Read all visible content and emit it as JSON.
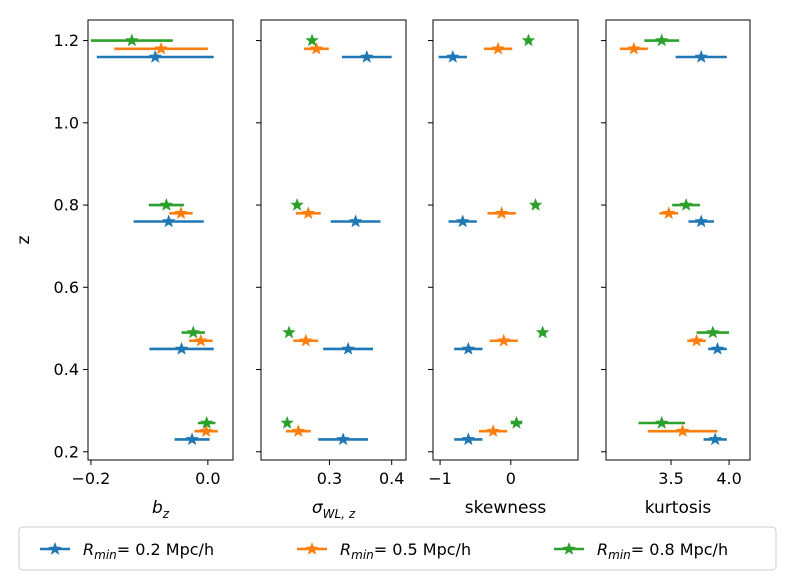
{
  "chart_data": {
    "type": "scatter",
    "shared_y": {
      "label": "z",
      "ylim": [
        0.18,
        1.25
      ],
      "ticks": [
        0.2,
        0.4,
        0.6,
        0.8,
        1.0,
        1.2
      ],
      "tick_labels": [
        "0.2",
        "0.4",
        "0.6",
        "0.8",
        "1.0",
        "1.2"
      ]
    },
    "panels": [
      {
        "id": "bz",
        "xlabel_main": "b",
        "xlabel_sub": "z",
        "xlim": [
          -0.205,
          0.043
        ],
        "ticks": [
          -0.2,
          0.0
        ],
        "tick_labels": [
          "−0.2",
          "0.0"
        ]
      },
      {
        "id": "sigma",
        "xlabel_main": "σ",
        "xlabel_sub": "WL, z",
        "xlim": [
          0.19,
          0.423
        ],
        "ticks": [
          0.3,
          0.4
        ],
        "tick_labels": [
          "0.3",
          "0.4"
        ]
      },
      {
        "id": "skewness",
        "xlabel_main": "skewness",
        "xlabel_sub": "",
        "xlim": [
          -1.1,
          0.95
        ],
        "ticks": [
          -1,
          0
        ],
        "tick_labels": [
          "−1",
          "0"
        ]
      },
      {
        "id": "kurtosis",
        "xlabel_main": "kurtosis",
        "xlabel_sub": "",
        "xlim": [
          2.94,
          4.18
        ],
        "ticks": [
          3.5,
          4.0
        ],
        "tick_labels": [
          "3.5",
          "4.0"
        ]
      }
    ],
    "series": [
      {
        "name": "R_min = 0.2 Mpc/h",
        "color": "#1f77b4",
        "z": [
          0.23,
          0.45,
          0.76,
          1.16
        ],
        "bz": [
          [
            -0.027,
            0.03
          ],
          [
            -0.045,
            0.055
          ],
          [
            -0.067,
            0.06
          ],
          [
            -0.09,
            0.1
          ]
        ],
        "sigma": [
          [
            0.322,
            0.04
          ],
          [
            0.33,
            0.04
          ],
          [
            0.342,
            0.04
          ],
          [
            0.36,
            0.04
          ]
        ],
        "skewness": [
          [
            -0.6,
            0.2
          ],
          [
            -0.6,
            0.2
          ],
          [
            -0.68,
            0.2
          ],
          [
            -0.82,
            0.2
          ]
        ],
        "kurtosis": [
          [
            3.88,
            0.1
          ],
          [
            3.9,
            0.08
          ],
          [
            3.76,
            0.11
          ],
          [
            3.76,
            0.22
          ]
        ]
      },
      {
        "name": "R_min = 0.5 Mpc/h",
        "color": "#ff7f0e",
        "z": [
          0.25,
          0.47,
          0.78,
          1.18
        ],
        "bz": [
          [
            -0.003,
            0.02
          ],
          [
            -0.012,
            0.02
          ],
          [
            -0.046,
            0.02
          ],
          [
            -0.08,
            0.08
          ]
        ],
        "sigma": [
          [
            0.25,
            0.02
          ],
          [
            0.262,
            0.02
          ],
          [
            0.266,
            0.02
          ],
          [
            0.279,
            0.02
          ]
        ],
        "skewness": [
          [
            -0.25,
            0.2
          ],
          [
            -0.1,
            0.2
          ],
          [
            -0.13,
            0.2
          ],
          [
            -0.18,
            0.2
          ]
        ],
        "kurtosis": [
          [
            3.6,
            0.3
          ],
          [
            3.72,
            0.08
          ],
          [
            3.48,
            0.08
          ],
          [
            3.18,
            0.12
          ]
        ]
      },
      {
        "name": "R_min = 0.8 Mpc/h",
        "color": "#2ca02c",
        "z": [
          0.27,
          0.49,
          0.8,
          1.2
        ],
        "bz": [
          [
            -0.002,
            0.015
          ],
          [
            -0.025,
            0.02
          ],
          [
            -0.071,
            0.03
          ],
          [
            -0.13,
            0.07
          ]
        ],
        "sigma": [
          [
            0.232,
            0.005
          ],
          [
            0.235,
            0.005
          ],
          [
            0.248,
            0.005
          ],
          [
            0.272,
            0.005
          ]
        ],
        "skewness": [
          [
            0.08,
            0.08
          ],
          [
            0.45,
            0.05
          ],
          [
            0.35,
            0.05
          ],
          [
            0.25,
            0.05
          ]
        ],
        "kurtosis": [
          [
            3.42,
            0.2
          ],
          [
            3.86,
            0.14
          ],
          [
            3.63,
            0.12
          ],
          [
            3.42,
            0.15
          ]
        ]
      }
    ],
    "legend": {
      "location": "bottom",
      "entries": [
        {
          "prefix": "R",
          "sub": "min",
          "suffix": "= 0.2 Mpc/h"
        },
        {
          "prefix": "R",
          "sub": "min",
          "suffix": "= 0.5 Mpc/h"
        },
        {
          "prefix": "R",
          "sub": "min",
          "suffix": "= 0.8 Mpc/h"
        }
      ]
    }
  }
}
